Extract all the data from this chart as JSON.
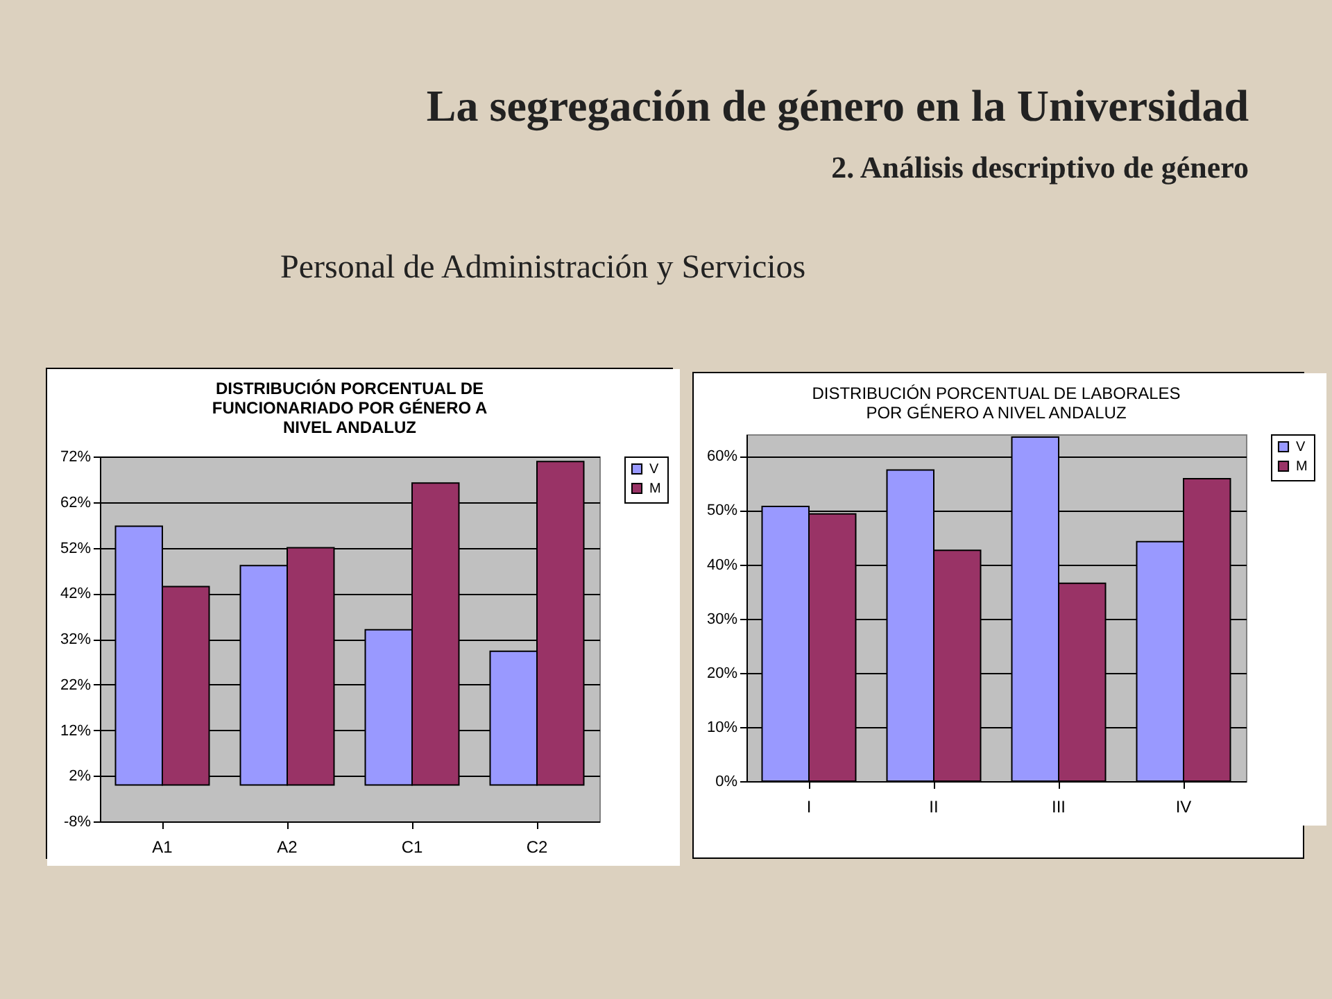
{
  "chart_data": [
    {
      "type": "other",
      "title": "La segregación de género en la Universidad",
      "subtitle": "2. Análisis descriptivo de género",
      "annotations": [
        "Personal de Administración y Servicios"
      ]
    },
    {
      "type": "bar",
      "title": "DISTRIBUCIÓN PORCENTUAL DE FUNCIONARIADO POR GÉNERO A NIVEL ANDALUZ",
      "categories": [
        "A1",
        "A2",
        "C1",
        "C2"
      ],
      "series": [
        {
          "name": "V",
          "color": "#9999ff",
          "values": [
            56.7,
            48.1,
            34,
            29.3
          ]
        },
        {
          "name": "M",
          "color": "#993366",
          "values": [
            43.5,
            52,
            66.2,
            70.9
          ]
        }
      ],
      "ylim": [
        -8,
        72
      ],
      "yticks": [
        {
          "value": -8,
          "label": "-8%"
        },
        {
          "value": 2,
          "label": "2%"
        },
        {
          "value": 12,
          "label": "12%"
        },
        {
          "value": 22,
          "label": "22%"
        },
        {
          "value": 32,
          "label": "32%"
        },
        {
          "value": 42,
          "label": "42%"
        },
        {
          "value": 52,
          "label": "52%"
        },
        {
          "value": 62,
          "label": "62%"
        },
        {
          "value": 72,
          "label": "72%"
        }
      ],
      "grid": "y",
      "legend": "right"
    },
    {
      "type": "bar",
      "title": "DISTRIBUCIÓN PORCENTUAL DE LABORALES POR GÉNERO A NIVEL ANDALUZ",
      "categories": [
        "I",
        "II",
        "III",
        "IV"
      ],
      "series": [
        {
          "name": "V",
          "color": "#9999ff",
          "values": [
            50.7,
            57.4,
            63.5,
            44.2
          ]
        },
        {
          "name": "M",
          "color": "#993366",
          "values": [
            49.3,
            42.6,
            36.5,
            55.8
          ]
        }
      ],
      "ylim": [
        0,
        64
      ],
      "yticks": [
        {
          "value": 0,
          "label": "0%"
        },
        {
          "value": 10,
          "label": "10%"
        },
        {
          "value": 20,
          "label": "20%"
        },
        {
          "value": 30,
          "label": "30%"
        },
        {
          "value": 40,
          "label": "40%"
        },
        {
          "value": 50,
          "label": "50%"
        },
        {
          "value": 60,
          "label": "60%"
        }
      ],
      "grid": "y",
      "legend": "right"
    }
  ]
}
